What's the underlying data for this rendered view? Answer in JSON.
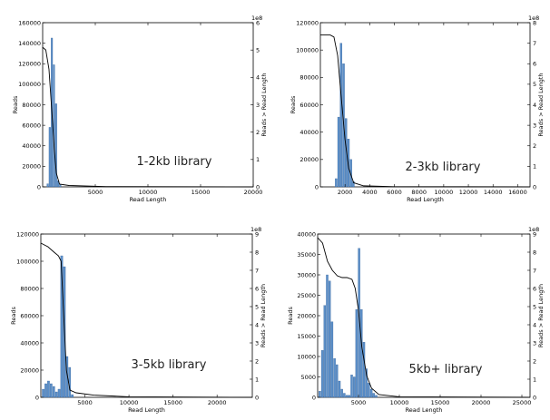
{
  "figure": {
    "panels": [
      {
        "library_label": "1-2kb library"
      },
      {
        "library_label": "2-3kb library"
      },
      {
        "library_label": "3-5kb library"
      },
      {
        "library_label": "5kb+ library"
      }
    ]
  },
  "colors": {
    "bar": "#5b8fc9",
    "bar_edge": "#2e5c94",
    "line": "#000000",
    "axis": "#000000"
  },
  "chart_data": [
    {
      "type": "bar",
      "annotation": "1-2kb library",
      "xlabel": "Read Length",
      "ylabel": "Reads",
      "y2label": "Reads > Read Length",
      "xlim": [
        0,
        20000
      ],
      "ylim": [
        0,
        160000
      ],
      "y2lim": [
        0,
        6
      ],
      "y2_multiplier": "1e8",
      "xticks": [
        5000,
        10000,
        15000,
        20000
      ],
      "yticks": [
        0,
        20000,
        40000,
        60000,
        80000,
        100000,
        120000,
        140000,
        160000
      ],
      "y2ticks": [
        0,
        1,
        2,
        3,
        4,
        5,
        6
      ],
      "bin_width": 200,
      "bins": [
        {
          "x": 500,
          "y": 3000
        },
        {
          "x": 700,
          "y": 58000
        },
        {
          "x": 900,
          "y": 145000
        },
        {
          "x": 1100,
          "y": 119000
        },
        {
          "x": 1300,
          "y": 81000
        },
        {
          "x": 1500,
          "y": 6000
        },
        {
          "x": 1700,
          "y": 2000
        }
      ],
      "series": [
        {
          "name": "Reads > Read Length",
          "axis": "right",
          "points": [
            [
              0,
              5.1
            ],
            [
              300,
              5.0
            ],
            [
              600,
              4.3
            ],
            [
              900,
              2.6
            ],
            [
              1100,
              1.4
            ],
            [
              1300,
              0.5
            ],
            [
              1600,
              0.1
            ],
            [
              2500,
              0.05
            ],
            [
              6000,
              0.01
            ],
            [
              20000,
              0.0
            ]
          ]
        }
      ]
    },
    {
      "type": "bar",
      "annotation": "2-3kb library",
      "xlabel": "Read Length",
      "ylabel": "Reads",
      "y2label": "Reads > Read Length",
      "xlim": [
        0,
        17000
      ],
      "ylim": [
        0,
        120000
      ],
      "y2lim": [
        0,
        8
      ],
      "y2_multiplier": "1e8",
      "xticks": [
        2000,
        4000,
        6000,
        8000,
        10000,
        12000,
        14000,
        16000
      ],
      "yticks": [
        0,
        20000,
        40000,
        60000,
        80000,
        100000,
        120000
      ],
      "y2ticks": [
        0,
        1,
        2,
        3,
        4,
        5,
        6,
        7,
        8
      ],
      "bin_width": 200,
      "bins": [
        {
          "x": 1300,
          "y": 6000
        },
        {
          "x": 1500,
          "y": 51000
        },
        {
          "x": 1700,
          "y": 105000
        },
        {
          "x": 1900,
          "y": 90000
        },
        {
          "x": 2100,
          "y": 50000
        },
        {
          "x": 2300,
          "y": 35000
        },
        {
          "x": 2500,
          "y": 20000
        },
        {
          "x": 2700,
          "y": 4000
        }
      ],
      "series": [
        {
          "name": "Reads > Read Length",
          "axis": "right",
          "points": [
            [
              0,
              7.4
            ],
            [
              800,
              7.4
            ],
            [
              1100,
              7.3
            ],
            [
              1400,
              6.4
            ],
            [
              1700,
              4.3
            ],
            [
              2000,
              2.3
            ],
            [
              2300,
              0.9
            ],
            [
              2700,
              0.2
            ],
            [
              3500,
              0.05
            ],
            [
              6000,
              0.01
            ],
            [
              17000,
              0.0
            ]
          ]
        }
      ]
    },
    {
      "type": "bar",
      "annotation": "3-5kb library",
      "xlabel": "Read Length",
      "ylabel": "Reads",
      "y2label": "Reads > Read Length",
      "xlim": [
        0,
        24000
      ],
      "ylim": [
        0,
        120000
      ],
      "y2lim": [
        0,
        9
      ],
      "y2_multiplier": "1e8",
      "xticks": [
        5000,
        10000,
        15000,
        20000
      ],
      "yticks": [
        0,
        20000,
        40000,
        60000,
        80000,
        100000,
        120000
      ],
      "y2ticks": [
        0,
        1,
        2,
        3,
        4,
        5,
        6,
        7,
        8,
        9
      ],
      "bin_width": 300,
      "bins": [
        {
          "x": 300,
          "y": 6000
        },
        {
          "x": 600,
          "y": 10000
        },
        {
          "x": 900,
          "y": 12000
        },
        {
          "x": 1200,
          "y": 10000
        },
        {
          "x": 1500,
          "y": 8000
        },
        {
          "x": 1800,
          "y": 4000
        },
        {
          "x": 2100,
          "y": 6000
        },
        {
          "x": 2400,
          "y": 104000
        },
        {
          "x": 2700,
          "y": 96000
        },
        {
          "x": 3000,
          "y": 30000
        },
        {
          "x": 3300,
          "y": 22000
        },
        {
          "x": 3600,
          "y": 2000
        }
      ],
      "series": [
        {
          "name": "Reads > Read Length",
          "axis": "right",
          "points": [
            [
              0,
              8.5
            ],
            [
              800,
              8.3
            ],
            [
              1500,
              8.0
            ],
            [
              2000,
              7.8
            ],
            [
              2300,
              7.5
            ],
            [
              2600,
              4.5
            ],
            [
              2900,
              1.5
            ],
            [
              3300,
              0.4
            ],
            [
              4000,
              0.25
            ],
            [
              6000,
              0.12
            ],
            [
              10000,
              0.03
            ],
            [
              24000,
              0.0
            ]
          ]
        }
      ]
    },
    {
      "type": "bar",
      "annotation": "5kb+ library",
      "xlabel": "Read Length",
      "ylabel": "Reads",
      "y2label": "Reads > Read Length",
      "xlim": [
        0,
        26000
      ],
      "ylim": [
        0,
        40000
      ],
      "y2lim": [
        0,
        9
      ],
      "y2_multiplier": "1e8",
      "xticks": [
        5000,
        10000,
        15000,
        20000,
        25000
      ],
      "yticks": [
        0,
        5000,
        10000,
        15000,
        20000,
        25000,
        30000,
        35000,
        40000
      ],
      "y2ticks": [
        0,
        1,
        2,
        3,
        4,
        5,
        6,
        7,
        8,
        9
      ],
      "bin_width": 300,
      "bins": [
        {
          "x": 300,
          "y": 1500
        },
        {
          "x": 600,
          "y": 11500
        },
        {
          "x": 900,
          "y": 22500
        },
        {
          "x": 1200,
          "y": 30000
        },
        {
          "x": 1500,
          "y": 28500
        },
        {
          "x": 1800,
          "y": 18500
        },
        {
          "x": 2100,
          "y": 9500
        },
        {
          "x": 2400,
          "y": 8000
        },
        {
          "x": 2700,
          "y": 4000
        },
        {
          "x": 3000,
          "y": 2000
        },
        {
          "x": 3300,
          "y": 1000
        },
        {
          "x": 3600,
          "y": 500
        },
        {
          "x": 3900,
          "y": 500
        },
        {
          "x": 4200,
          "y": 5500
        },
        {
          "x": 4500,
          "y": 5000
        },
        {
          "x": 4800,
          "y": 21500
        },
        {
          "x": 5100,
          "y": 36500
        },
        {
          "x": 5400,
          "y": 21500
        },
        {
          "x": 5700,
          "y": 13500
        },
        {
          "x": 6000,
          "y": 7000
        },
        {
          "x": 6300,
          "y": 3500
        },
        {
          "x": 6600,
          "y": 2000
        },
        {
          "x": 6900,
          "y": 1000
        },
        {
          "x": 7200,
          "y": 500
        }
      ],
      "series": [
        {
          "name": "Reads > Read Length",
          "axis": "right",
          "points": [
            [
              0,
              8.8
            ],
            [
              600,
              8.5
            ],
            [
              1200,
              7.5
            ],
            [
              1800,
              7.0
            ],
            [
              2400,
              6.7
            ],
            [
              3000,
              6.6
            ],
            [
              3600,
              6.6
            ],
            [
              4200,
              6.5
            ],
            [
              4600,
              6.0
            ],
            [
              5000,
              4.8
            ],
            [
              5400,
              2.8
            ],
            [
              6000,
              1.2
            ],
            [
              6600,
              0.5
            ],
            [
              7500,
              0.15
            ],
            [
              10000,
              0.03
            ],
            [
              26000,
              0.0
            ]
          ]
        }
      ]
    }
  ]
}
